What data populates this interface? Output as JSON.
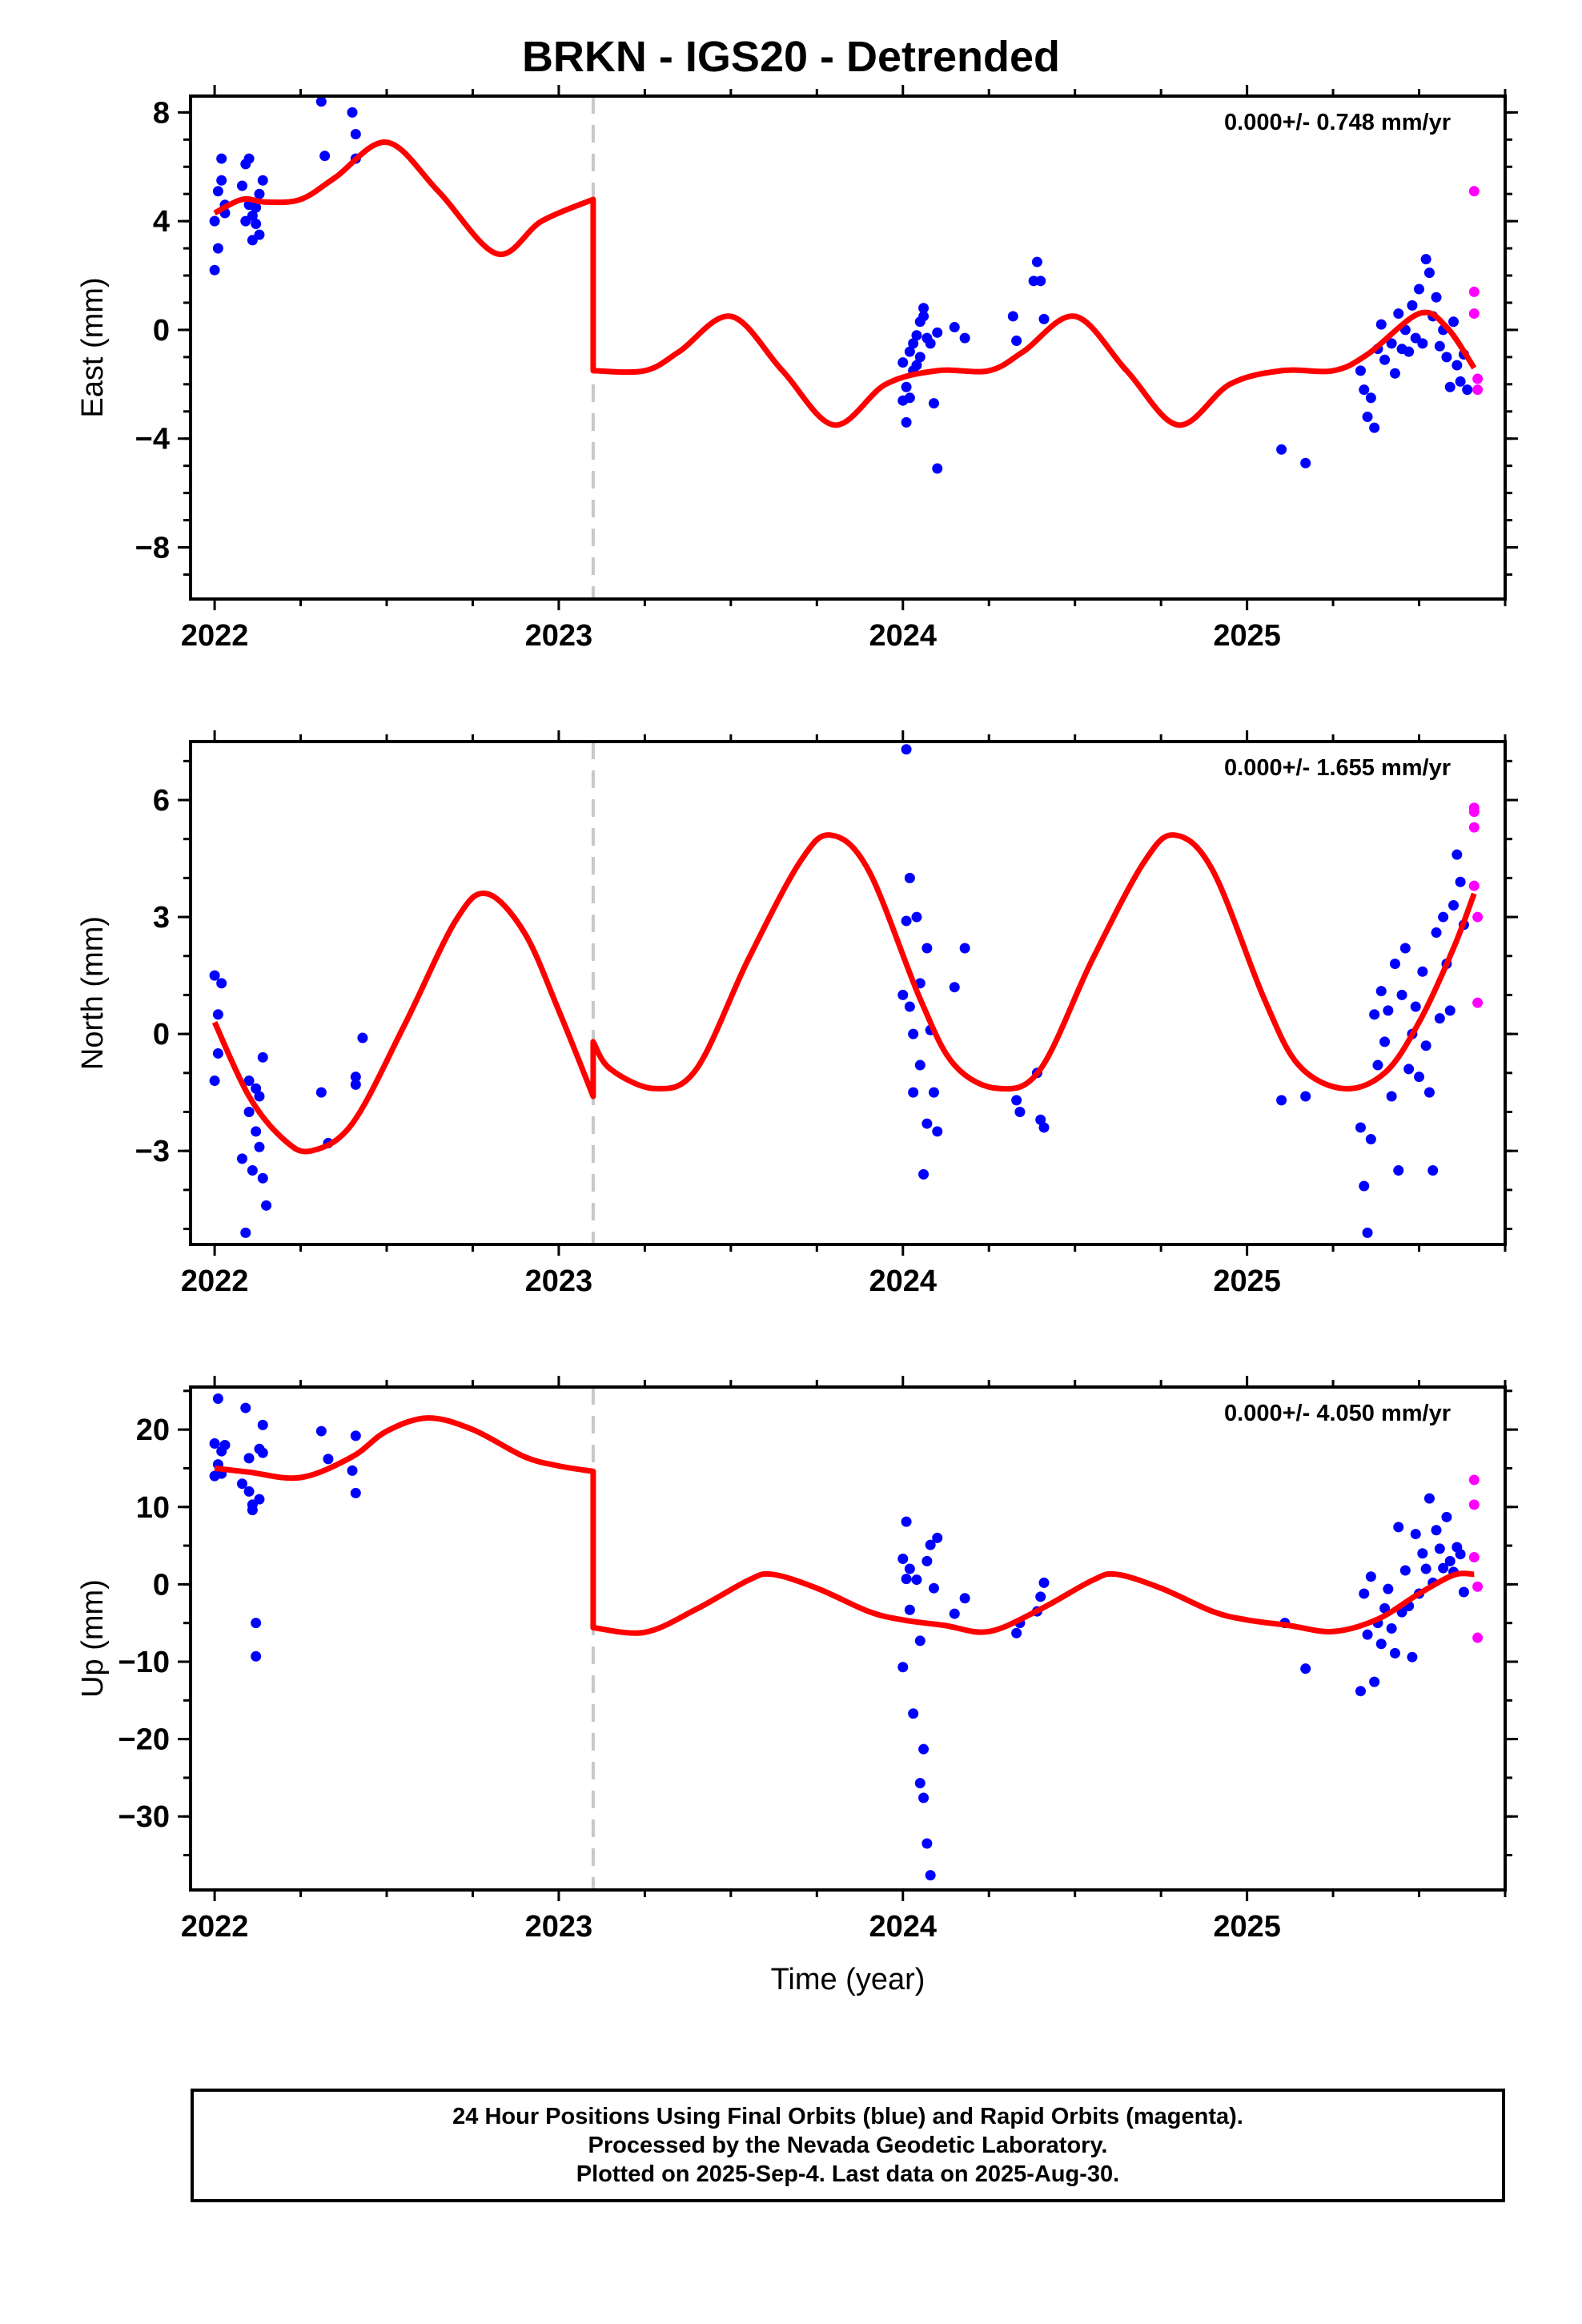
{
  "title": "BRKN - IGS20 - Detrended",
  "footer": {
    "line1": "24 Hour Positions Using Final Orbits (blue) and Rapid Orbits (magenta).",
    "line2": "Processed by the Nevada Geodetic Laboratory.",
    "line3": "Plotted on 2025-Sep-4. Last data on 2025-Aug-30."
  },
  "colors": {
    "final": "#0000ff",
    "rapid": "#ff00ff",
    "model": "#ff0000",
    "break_line": "#c8c8c8"
  },
  "chart_data": [
    {
      "type": "scatter",
      "xlabel": "",
      "ylabel": "East (mm)",
      "xlim": [
        2021.93,
        2025.75
      ],
      "ylim": [
        -9.9,
        8.6
      ],
      "xticks": [
        2022,
        2023,
        2024,
        2025
      ],
      "yticks": [
        8,
        4,
        0,
        -4,
        -8
      ],
      "ytick_labels": [
        "8",
        "4",
        "0",
        "−4",
        "−8"
      ],
      "rate_label": "0.000+/- 0.748 mm/yr",
      "break_x": 2023.1,
      "model": {
        "x": [
          2022.0,
          2022.08,
          2022.15,
          2022.25,
          2022.35,
          2022.5,
          2022.65,
          2022.82,
          2022.95,
          2023.1,
          2023.1,
          2023.25,
          2023.35,
          2023.5,
          2023.65,
          2023.8,
          2023.95,
          2024.1,
          2024.25,
          2024.35,
          2024.5,
          2024.65,
          2024.8,
          2024.95,
          2025.1,
          2025.25,
          2025.35,
          2025.5,
          2025.58,
          2025.66
        ],
        "y": [
          4.3,
          4.8,
          4.7,
          4.8,
          5.6,
          6.9,
          5.1,
          2.8,
          4.0,
          4.8,
          -1.5,
          -1.5,
          -0.8,
          0.5,
          -1.5,
          -3.5,
          -2.0,
          -1.5,
          -1.5,
          -0.8,
          0.5,
          -1.5,
          -3.5,
          -2.0,
          -1.5,
          -1.5,
          -0.9,
          0.6,
          0.1,
          -1.4
        ]
      },
      "final_points": {
        "x": [
          2022.0,
          2022.0,
          2022.01,
          2022.01,
          2022.02,
          2022.02,
          2022.03,
          2022.03,
          2022.08,
          2022.09,
          2022.09,
          2022.1,
          2022.1,
          2022.11,
          2022.11,
          2022.12,
          2022.12,
          2022.13,
          2022.13,
          2022.14,
          2022.31,
          2022.32,
          2022.4,
          2022.41,
          2022.41,
          2024.0,
          2024.0,
          2024.01,
          2024.01,
          2024.02,
          2024.02,
          2024.03,
          2024.03,
          2024.04,
          2024.04,
          2024.05,
          2024.05,
          2024.06,
          2024.06,
          2024.07,
          2024.08,
          2024.09,
          2024.1,
          2024.1,
          2024.15,
          2024.18,
          2024.32,
          2024.33,
          2024.38,
          2024.39,
          2024.4,
          2024.41,
          2025.1,
          2025.17,
          2025.33,
          2025.34,
          2025.35,
          2025.36,
          2025.37,
          2025.38,
          2025.39,
          2025.4,
          2025.42,
          2025.43,
          2025.44,
          2025.45,
          2025.46,
          2025.47,
          2025.48,
          2025.49,
          2025.5,
          2025.51,
          2025.52,
          2025.53,
          2025.54,
          2025.55,
          2025.56,
          2025.57,
          2025.58,
          2025.59,
          2025.6,
          2025.61,
          2025.62,
          2025.63,
          2025.64
        ],
        "y": [
          2.2,
          4.0,
          3.0,
          5.1,
          5.5,
          6.3,
          4.3,
          4.6,
          5.3,
          6.1,
          4.0,
          6.3,
          4.6,
          4.2,
          3.3,
          3.9,
          4.5,
          5.0,
          3.5,
          5.5,
          8.4,
          6.4,
          8.0,
          7.2,
          6.3,
          -1.2,
          -2.6,
          -2.1,
          -3.4,
          -0.8,
          -2.5,
          -1.5,
          -0.5,
          -0.2,
          -1.3,
          0.3,
          -1.0,
          0.8,
          0.5,
          -0.3,
          -0.5,
          -2.7,
          -0.1,
          -5.1,
          0.1,
          -0.3,
          0.5,
          -0.4,
          1.8,
          2.5,
          1.8,
          0.4,
          -4.4,
          -4.9,
          -1.5,
          -2.2,
          -3.2,
          -2.5,
          -3.6,
          -0.7,
          0.2,
          -1.1,
          -0.5,
          -1.6,
          0.6,
          -0.7,
          0.0,
          -0.8,
          0.9,
          -0.3,
          1.5,
          -0.5,
          2.6,
          2.1,
          0.5,
          1.2,
          -0.6,
          0.0,
          -1.0,
          -2.1,
          0.3,
          -1.3,
          -1.9,
          -0.9,
          -2.2
        ]
      },
      "rapid_points": {
        "x": [
          2025.66,
          2025.66,
          2025.66,
          2025.67,
          2025.67
        ],
        "y": [
          5.1,
          1.4,
          0.6,
          -1.8,
          -2.2
        ]
      }
    },
    {
      "type": "scatter",
      "xlabel": "",
      "ylabel": "North (mm)",
      "xlim": [
        2021.93,
        2025.75
      ],
      "ylim": [
        -5.4,
        7.5
      ],
      "xticks": [
        2022,
        2023,
        2024,
        2025
      ],
      "yticks": [
        6,
        3,
        0,
        -3
      ],
      "ytick_labels": [
        "6",
        "3",
        "0",
        "−3"
      ],
      "rate_label": "0.000+/- 1.655 mm/yr",
      "break_x": 2023.1,
      "model": {
        "x": [
          2022.0,
          2022.1,
          2022.2,
          2022.28,
          2022.4,
          2022.55,
          2022.7,
          2022.79,
          2022.9,
          2023.0,
          2023.1,
          2023.1,
          2023.15,
          2023.28,
          2023.4,
          2023.55,
          2023.7,
          2023.79,
          2023.9,
          2024.05,
          2024.15,
          2024.28,
          2024.4,
          2024.55,
          2024.7,
          2024.79,
          2024.9,
          2025.05,
          2025.15,
          2025.28,
          2025.4,
          2025.5,
          2025.6,
          2025.66
        ],
        "y": [
          0.3,
          -1.6,
          -2.7,
          -3.0,
          -2.3,
          0.2,
          2.9,
          3.6,
          2.6,
          0.6,
          -1.6,
          -0.2,
          -0.9,
          -1.4,
          -0.9,
          1.9,
          4.4,
          5.1,
          4.2,
          0.9,
          -0.8,
          -1.4,
          -0.9,
          1.9,
          4.4,
          5.1,
          4.2,
          0.9,
          -0.8,
          -1.4,
          -1.0,
          0.3,
          2.2,
          3.6
        ]
      },
      "final_points": {
        "x": [
          2022.0,
          2022.0,
          2022.01,
          2022.01,
          2022.02,
          2022.08,
          2022.09,
          2022.1,
          2022.1,
          2022.11,
          2022.12,
          2022.12,
          2022.13,
          2022.13,
          2022.14,
          2022.14,
          2022.15,
          2022.31,
          2022.33,
          2022.41,
          2022.41,
          2022.43,
          2024.0,
          2024.01,
          2024.01,
          2024.02,
          2024.02,
          2024.03,
          2024.03,
          2024.04,
          2024.05,
          2024.05,
          2024.06,
          2024.07,
          2024.07,
          2024.08,
          2024.09,
          2024.1,
          2024.15,
          2024.18,
          2024.33,
          2024.34,
          2024.39,
          2024.4,
          2024.41,
          2025.1,
          2025.17,
          2025.33,
          2025.34,
          2025.35,
          2025.36,
          2025.37,
          2025.38,
          2025.39,
          2025.4,
          2025.41,
          2025.42,
          2025.43,
          2025.44,
          2025.45,
          2025.46,
          2025.47,
          2025.48,
          2025.49,
          2025.5,
          2025.51,
          2025.52,
          2025.53,
          2025.54,
          2025.55,
          2025.56,
          2025.57,
          2025.58,
          2025.59,
          2025.6,
          2025.61,
          2025.62,
          2025.63
        ],
        "y": [
          -1.2,
          1.5,
          -0.5,
          0.5,
          1.3,
          -3.2,
          -5.1,
          -1.2,
          -2.0,
          -3.5,
          -2.5,
          -1.4,
          -2.9,
          -1.6,
          -3.7,
          -0.6,
          -4.4,
          -1.5,
          -2.8,
          -1.3,
          -1.1,
          -0.1,
          1.0,
          7.3,
          2.9,
          4.0,
          0.7,
          0.0,
          -1.5,
          3.0,
          1.3,
          -0.8,
          -3.6,
          2.2,
          -2.3,
          0.1,
          -1.5,
          -2.5,
          1.2,
          2.2,
          -1.7,
          -2.0,
          -1.0,
          -2.2,
          -2.4,
          -1.7,
          -1.6,
          -2.4,
          -3.9,
          -5.1,
          -2.7,
          0.5,
          -0.8,
          1.1,
          -0.2,
          0.6,
          -1.6,
          1.8,
          -3.5,
          1.0,
          2.2,
          -0.9,
          0.0,
          0.7,
          -1.1,
          1.6,
          -0.3,
          -1.5,
          -3.5,
          2.6,
          0.4,
          3.0,
          1.8,
          0.6,
          3.3,
          4.6,
          3.9,
          2.8
        ]
      },
      "rapid_points": {
        "x": [
          2025.66,
          2025.66,
          2025.66,
          2025.66,
          2025.67,
          2025.67
        ],
        "y": [
          5.8,
          5.7,
          5.3,
          3.8,
          3.0,
          0.8
        ]
      }
    },
    {
      "type": "scatter",
      "xlabel": "Time (year)",
      "ylabel": "Up (mm)",
      "xlim": [
        2021.93,
        2025.75
      ],
      "ylim": [
        -39.5,
        25.5
      ],
      "xticks": [
        2022,
        2023,
        2024,
        2025
      ],
      "yticks": [
        20,
        10,
        0,
        -10,
        -20,
        -30
      ],
      "ytick_labels": [
        "20",
        "10",
        "0",
        "−10",
        "−20",
        "−30"
      ],
      "rate_label": "0.000+/- 4.050 mm/yr",
      "break_x": 2023.1,
      "model": {
        "x": [
          2022.0,
          2022.1,
          2022.25,
          2022.4,
          2022.5,
          2022.62,
          2022.75,
          2022.9,
          2023.0,
          2023.1,
          2023.1,
          2023.25,
          2023.4,
          2023.55,
          2023.62,
          2023.75,
          2023.9,
          2024.0,
          2024.12,
          2024.25,
          2024.4,
          2024.55,
          2024.62,
          2024.75,
          2024.9,
          2025.0,
          2025.12,
          2025.25,
          2025.38,
          2025.5,
          2025.6,
          2025.66
        ],
        "y": [
          15.0,
          14.5,
          13.8,
          16.5,
          19.8,
          21.5,
          20.0,
          16.5,
          15.3,
          14.6,
          -5.6,
          -6.2,
          -3.2,
          0.5,
          1.3,
          -0.5,
          -3.5,
          -4.6,
          -5.3,
          -6.1,
          -3.2,
          0.5,
          1.3,
          -0.5,
          -3.5,
          -4.6,
          -5.3,
          -6.1,
          -4.5,
          -1.2,
          1.2,
          1.3
        ]
      },
      "final_points": {
        "x": [
          2022.0,
          2022.0,
          2022.01,
          2022.01,
          2022.02,
          2022.02,
          2022.03,
          2022.08,
          2022.09,
          2022.1,
          2022.1,
          2022.11,
          2022.11,
          2022.12,
          2022.12,
          2022.13,
          2022.13,
          2022.14,
          2022.14,
          2022.31,
          2022.33,
          2022.4,
          2022.41,
          2022.41,
          2024.0,
          2024.0,
          2024.01,
          2024.01,
          2024.02,
          2024.02,
          2024.03,
          2024.04,
          2024.05,
          2024.05,
          2024.06,
          2024.06,
          2024.07,
          2024.07,
          2024.08,
          2024.08,
          2024.09,
          2024.1,
          2024.15,
          2024.18,
          2024.33,
          2024.34,
          2024.39,
          2024.4,
          2024.41,
          2025.11,
          2025.17,
          2025.33,
          2025.34,
          2025.35,
          2025.36,
          2025.37,
          2025.38,
          2025.39,
          2025.4,
          2025.41,
          2025.42,
          2025.43,
          2025.44,
          2025.45,
          2025.46,
          2025.47,
          2025.48,
          2025.49,
          2025.5,
          2025.51,
          2025.52,
          2025.53,
          2025.54,
          2025.55,
          2025.56,
          2025.57,
          2025.58,
          2025.59,
          2025.6,
          2025.61,
          2025.62,
          2025.63
        ],
        "y": [
          14.0,
          18.2,
          15.5,
          24.0,
          17.2,
          14.3,
          18.0,
          13.0,
          22.8,
          16.3,
          12.0,
          10.3,
          9.6,
          -5.0,
          -9.3,
          11.0,
          17.5,
          20.6,
          17.0,
          19.8,
          16.2,
          14.7,
          11.8,
          19.2,
          -10.7,
          3.3,
          0.7,
          8.1,
          2.0,
          -3.3,
          -16.7,
          0.6,
          -7.3,
          -25.7,
          -27.6,
          -21.3,
          -33.5,
          3.0,
          -37.6,
          5.1,
          -0.5,
          6.0,
          -3.8,
          -1.8,
          -6.3,
          -5.0,
          -3.5,
          -1.6,
          0.2,
          -5.0,
          -10.9,
          -13.8,
          -1.2,
          -6.5,
          1.0,
          -12.6,
          -5.0,
          -7.7,
          -3.1,
          -0.6,
          -5.7,
          -8.9,
          7.4,
          -3.6,
          1.8,
          -2.8,
          -9.4,
          6.5,
          -1.2,
          4.0,
          2.0,
          11.1,
          0.2,
          7.0,
          4.6,
          2.1,
          8.7,
          3.0,
          1.6,
          4.8,
          3.9,
          -1.0
        ]
      },
      "rapid_points": {
        "x": [
          2025.66,
          2025.66,
          2025.66,
          2025.67,
          2025.67
        ],
        "y": [
          13.5,
          10.3,
          3.5,
          -0.3,
          -6.9
        ]
      }
    }
  ]
}
